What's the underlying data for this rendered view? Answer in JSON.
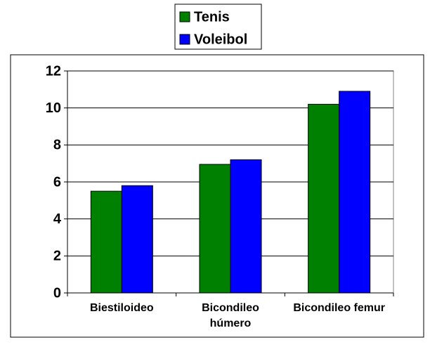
{
  "chart_data": {
    "type": "bar",
    "categories": [
      "Biestiloideo",
      "Bicondileo húmero",
      "Bicondileo femur"
    ],
    "series": [
      {
        "name": "Tenis",
        "color": "#008000",
        "values": [
          5.5,
          6.95,
          10.2
        ]
      },
      {
        "name": "Voleibol",
        "color": "#0000ff",
        "values": [
          5.8,
          7.2,
          10.9
        ]
      }
    ],
    "ylim": [
      0,
      12
    ],
    "yticks": [
      0,
      2,
      4,
      6,
      8,
      10,
      12
    ],
    "grid": true,
    "legend": "top"
  }
}
